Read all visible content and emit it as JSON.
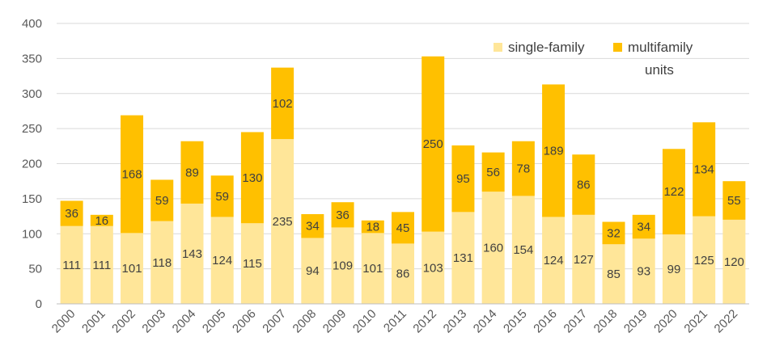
{
  "chart_data": {
    "type": "bar",
    "stacked": true,
    "title": "",
    "xlabel": "",
    "ylabel": "",
    "ylim": [
      0,
      400
    ],
    "yticks": [
      0,
      50,
      100,
      150,
      200,
      250,
      300,
      350,
      400
    ],
    "grid": true,
    "legend_position": "top-right",
    "categories": [
      "2000",
      "2001",
      "2002",
      "2003",
      "2004",
      "2005",
      "2006",
      "2007",
      "2008",
      "2009",
      "2010",
      "2011",
      "2012",
      "2013",
      "2014",
      "2015",
      "2016",
      "2017",
      "2018",
      "2019",
      "2020",
      "2021",
      "2022"
    ],
    "series": [
      {
        "name": "single-family",
        "color": "#ffe699",
        "values": [
          111,
          111,
          101,
          118,
          143,
          124,
          115,
          235,
          94,
          109,
          101,
          86,
          103,
          131,
          160,
          154,
          124,
          127,
          85,
          93,
          99,
          125,
          120
        ]
      },
      {
        "name": "multifamily units",
        "legend_lines": [
          "multifamily",
          "units"
        ],
        "color": "#ffc000",
        "values": [
          36,
          16,
          168,
          59,
          89,
          59,
          130,
          102,
          34,
          36,
          18,
          45,
          250,
          95,
          56,
          78,
          189,
          86,
          32,
          34,
          122,
          134,
          55
        ]
      }
    ]
  }
}
